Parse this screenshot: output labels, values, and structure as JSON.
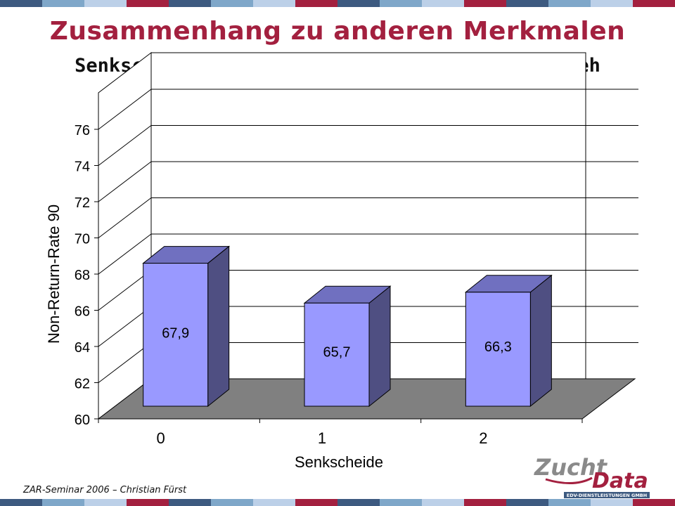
{
  "header": {
    "title": "Zusammenhang zu anderen Merkmalen",
    "subtitle": "Senkscheide/eingefallener Mastdarm - Braunvieh"
  },
  "footer": {
    "text": "ZAR-Seminar 2006 – Christian Fürst"
  },
  "logo": {
    "text_top": "Zucht",
    "text_bottom": "Data",
    "tagline": "EDV-DIENSTLEISTUNGEN GMBH"
  },
  "colors": {
    "title": "#a3203f",
    "bar_front": "#9999ff",
    "bar_side": "#4f4f82",
    "bar_top": "#7070c0",
    "floor": "#808080",
    "stripe": [
      "#3d5a80",
      "#7fa7c9",
      "#bcd0e8",
      "#a3203f"
    ]
  },
  "chart_data": {
    "type": "bar",
    "title": "",
    "xlabel": "Senkscheide",
    "ylabel": "Non-Return-Rate 90",
    "categories": [
      "0",
      "1",
      "2"
    ],
    "values": [
      67.9,
      65.7,
      66.3
    ],
    "value_labels": [
      "67,9",
      "65,7",
      "66,3"
    ],
    "ylim": [
      60,
      76
    ],
    "yticks": [
      60,
      62,
      64,
      66,
      68,
      70,
      72,
      74,
      76
    ],
    "grid": true,
    "style": "3d"
  }
}
